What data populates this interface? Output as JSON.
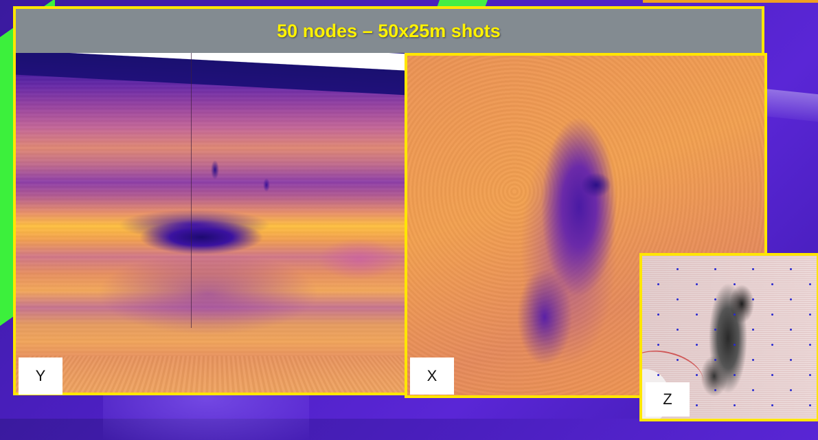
{
  "slide": {
    "title": "50 nodes – 50x25m shots"
  },
  "panels": {
    "y": {
      "label": "Y"
    },
    "x": {
      "label": "X"
    },
    "z": {
      "label": "Z"
    }
  },
  "colors": {
    "frame": "#ffe600",
    "header_bg": "#838b91",
    "title_text": "#fff200",
    "background": "#4b1fc0",
    "accent_green": "#3cf03c"
  }
}
